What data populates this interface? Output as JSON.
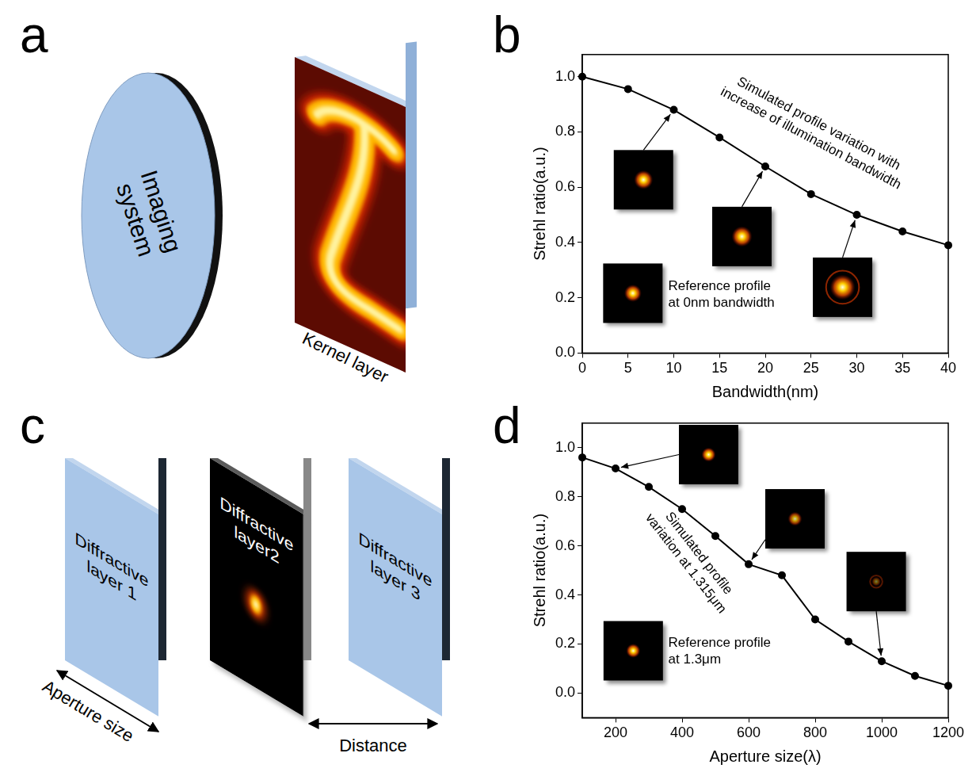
{
  "figure": {
    "a": {
      "label": "a",
      "imaging_system": "Imaging system",
      "kernel_layer": "Kernel layer"
    },
    "c": {
      "label": "c",
      "layers": [
        "Diffractive layer 1",
        "Diffractive layer2",
        "Diffractive layer 3"
      ],
      "aperture_size": "Aperture size",
      "distance": "Distance"
    }
  },
  "chart_data": [
    {
      "panel": "b",
      "type": "line",
      "x_label": "Bandwidth(nm)",
      "y_label": "Strehl ratio(a.u.)",
      "x": [
        0,
        5,
        10,
        15,
        20,
        25,
        30,
        35,
        40
      ],
      "values": [
        1.0,
        0.955,
        0.88,
        0.78,
        0.675,
        0.575,
        0.5,
        0.44,
        0.39
      ],
      "color": "#000000",
      "marker": "circle",
      "line_style": "solid",
      "grid": false,
      "xlim": [
        0,
        40
      ],
      "xticks": [
        0,
        5,
        10,
        15,
        20,
        25,
        30,
        35,
        40
      ],
      "ylim": [
        0,
        1.08
      ],
      "yticks": [
        {
          "value": 0,
          "label": "0.0"
        },
        0.2,
        0.4,
        0.6,
        0.8,
        {
          "value": 1,
          "label": "1.0"
        }
      ],
      "annotations": {
        "curve": "Simulated profile variation with increase of illumination bandwidth",
        "reference": "Reference profile at 0nm bandwidth"
      }
    },
    {
      "panel": "d",
      "type": "line",
      "x_label": "Aperture size(λ)",
      "y_label": "Strehl ratio(a.u.)",
      "x": [
        100,
        200,
        300,
        400,
        500,
        600,
        700,
        800,
        900,
        1000,
        1100,
        1200
      ],
      "values": [
        0.96,
        0.915,
        0.84,
        0.75,
        0.64,
        0.525,
        0.48,
        0.3,
        0.21,
        0.13,
        0.07,
        0.03
      ],
      "color": "#000000",
      "marker": "circle",
      "line_style": "solid",
      "grid": false,
      "xlim": [
        100,
        1200
      ],
      "xticks": [
        200,
        400,
        600,
        800,
        1000,
        1200
      ],
      "ylim": [
        -0.1,
        1.1
      ],
      "yticks": [
        {
          "value": 0,
          "label": "0.0"
        },
        0.2,
        0.4,
        0.6,
        0.8,
        {
          "value": 1,
          "label": "1.0"
        }
      ],
      "annotations": {
        "curve": "Simulated profile variation at 1.315μm",
        "reference": "Reference profile at 1.3μm"
      }
    }
  ]
}
